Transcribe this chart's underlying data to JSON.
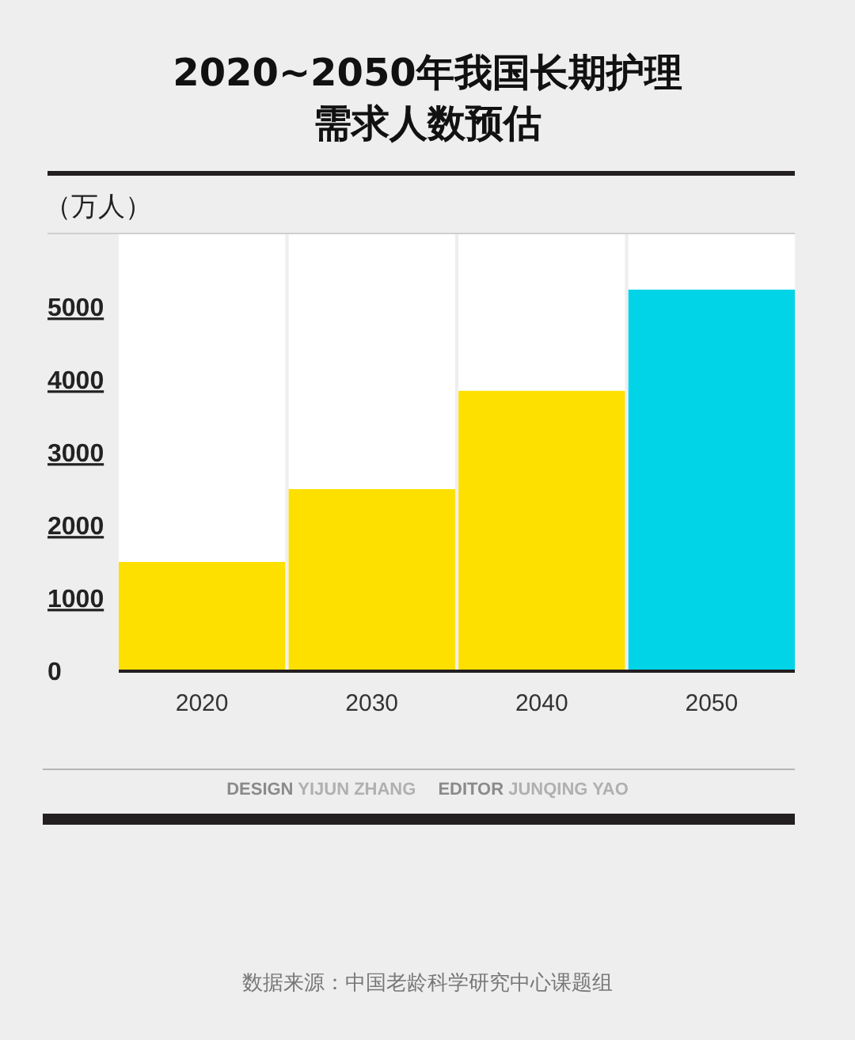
{
  "chart_data": {
    "type": "bar",
    "title": "2020~2050年我国长期护理需求人数预估",
    "ylabel": "（万人）",
    "categories": [
      "2020",
      "2030",
      "2040",
      "2050"
    ],
    "values": [
      1500,
      2500,
      3850,
      5240
    ],
    "colors": [
      "#fde000",
      "#fde000",
      "#fde000",
      "#00d4e6"
    ],
    "ylim": [
      0,
      6000
    ],
    "yticks": [
      0,
      1000,
      2000,
      3000,
      4000,
      5000
    ],
    "annotations": [
      "DESIGN YIJUN ZHANG",
      "EDITOR JUNQING YAO",
      "数据来源：中国老龄科学研究中心课题组"
    ]
  }
}
